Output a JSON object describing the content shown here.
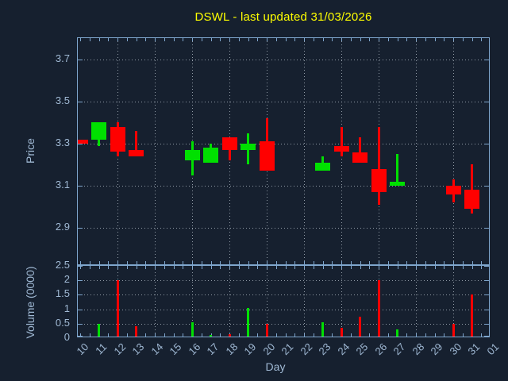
{
  "colors": {
    "up": "#00e000",
    "down": "#ff0000",
    "title": "#ffff00",
    "axis": "#7fa6cd",
    "tick_label": "#a0b9d4",
    "grid": "#b9c2cc",
    "background": "#16202f"
  },
  "chart_data": {
    "type": "candlestick",
    "title": "DSWL - last updated 31/03/2026",
    "xlabel": "Day",
    "legend": "none",
    "grid": "dotted; horizontal at price/volume ticks, vertical at even days",
    "categories": [
      "10",
      "11",
      "12",
      "13",
      "14",
      "15",
      "16",
      "17",
      "18",
      "19",
      "20",
      "21",
      "22",
      "23",
      "24",
      "25",
      "26",
      "27",
      "28",
      "29",
      "30",
      "31",
      "01"
    ],
    "gridline_days": [
      "12",
      "14",
      "16",
      "18",
      "20",
      "22",
      "24",
      "26",
      "28",
      "30"
    ],
    "price_axis": {
      "label": "Price",
      "range": [
        2.72,
        3.8
      ],
      "tick_values": [
        3.7,
        3.5,
        3.3,
        3.1,
        2.9
      ],
      "tick_labels": [
        "3.7",
        "3.5",
        "3.3",
        "3.1",
        "2.9"
      ]
    },
    "volume_axis": {
      "label": "Volume (0000)",
      "range": [
        0,
        2.5
      ],
      "tick_values": [
        2.5,
        2,
        1.5,
        1,
        0.5,
        0
      ],
      "tick_labels": [
        "2.5",
        "2",
        "1.5",
        "1",
        "0.5",
        "0"
      ]
    },
    "ohlcv": [
      {
        "day": "10",
        "open": 3.32,
        "high": 3.32,
        "low": 3.3,
        "close": 3.3,
        "volume": 0,
        "direction": "down"
      },
      {
        "day": "11",
        "open": 3.32,
        "high": 3.4,
        "low": 3.29,
        "close": 3.4,
        "volume": 0.5,
        "direction": "up"
      },
      {
        "day": "12",
        "open": 3.38,
        "high": 3.4,
        "low": 3.24,
        "close": 3.26,
        "volume": 2.0,
        "direction": "down"
      },
      {
        "day": "13",
        "open": 3.27,
        "high": 3.36,
        "low": 3.24,
        "close": 3.24,
        "volume": 0.4,
        "direction": "down"
      },
      {
        "day": "16",
        "open": 3.22,
        "high": 3.31,
        "low": 3.15,
        "close": 3.27,
        "volume": 0.55,
        "direction": "up"
      },
      {
        "day": "17",
        "open": 3.21,
        "high": 3.3,
        "low": 3.21,
        "close": 3.28,
        "volume": 0.1,
        "direction": "up"
      },
      {
        "day": "18",
        "open": 3.33,
        "high": 3.33,
        "low": 3.22,
        "close": 3.27,
        "volume": 0.15,
        "direction": "down"
      },
      {
        "day": "19",
        "open": 3.27,
        "high": 3.35,
        "low": 3.2,
        "close": 3.3,
        "volume": 1.05,
        "direction": "up"
      },
      {
        "day": "20",
        "open": 3.31,
        "high": 3.42,
        "low": 3.17,
        "close": 3.17,
        "volume": 0.5,
        "direction": "down"
      },
      {
        "day": "23",
        "open": 3.17,
        "high": 3.24,
        "low": 3.17,
        "close": 3.21,
        "volume": 0.55,
        "direction": "up"
      },
      {
        "day": "24",
        "open": 3.29,
        "high": 3.38,
        "low": 3.24,
        "close": 3.26,
        "volume": 0.35,
        "direction": "down"
      },
      {
        "day": "25",
        "open": 3.26,
        "high": 3.33,
        "low": 3.21,
        "close": 3.21,
        "volume": 0.75,
        "direction": "down"
      },
      {
        "day": "26",
        "open": 3.18,
        "high": 3.38,
        "low": 3.01,
        "close": 3.07,
        "volume": 2.0,
        "direction": "down"
      },
      {
        "day": "27",
        "open": 3.1,
        "high": 3.25,
        "low": 3.1,
        "close": 3.12,
        "volume": 0.3,
        "direction": "up"
      },
      {
        "day": "30",
        "open": 3.1,
        "high": 3.13,
        "low": 3.02,
        "close": 3.06,
        "volume": 0.5,
        "direction": "down"
      },
      {
        "day": "31",
        "open": 3.08,
        "high": 3.2,
        "low": 2.97,
        "close": 2.99,
        "volume": 1.5,
        "direction": "down"
      }
    ]
  }
}
